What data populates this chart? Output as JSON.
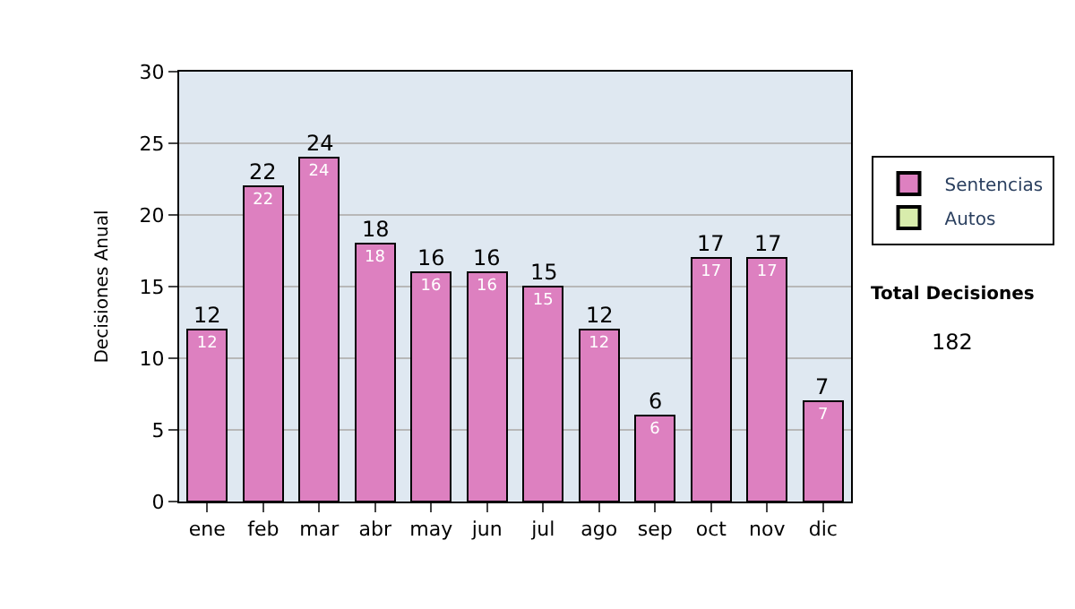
{
  "chart_data": {
    "type": "bar",
    "stacked": true,
    "ylabel": "Decisiones Anual",
    "categories": [
      "ene",
      "feb",
      "mar",
      "abr",
      "may",
      "jun",
      "jul",
      "ago",
      "sep",
      "oct",
      "nov",
      "dic"
    ],
    "series": [
      {
        "name": "Sentencias",
        "color": "#dd80c0",
        "values": [
          12,
          22,
          24,
          18,
          16,
          16,
          15,
          12,
          6,
          17,
          17,
          7
        ]
      },
      {
        "name": "Autos",
        "color": "#d8ecac",
        "values": [
          null,
          null,
          null,
          null,
          null,
          null,
          null,
          null,
          null,
          null,
          null,
          null
        ]
      }
    ],
    "totals": [
      "12",
      "22",
      "24",
      "18",
      "16",
      "16",
      "15",
      "12",
      "6",
      "17",
      "17",
      "7"
    ],
    "data_labels": true,
    "ylim": [
      0,
      30
    ],
    "yticks": [
      0,
      5,
      10,
      15,
      20,
      25,
      30
    ],
    "grid": "y",
    "legend": "right",
    "annotations": [
      "Total Decisiones",
      "182"
    ]
  }
}
